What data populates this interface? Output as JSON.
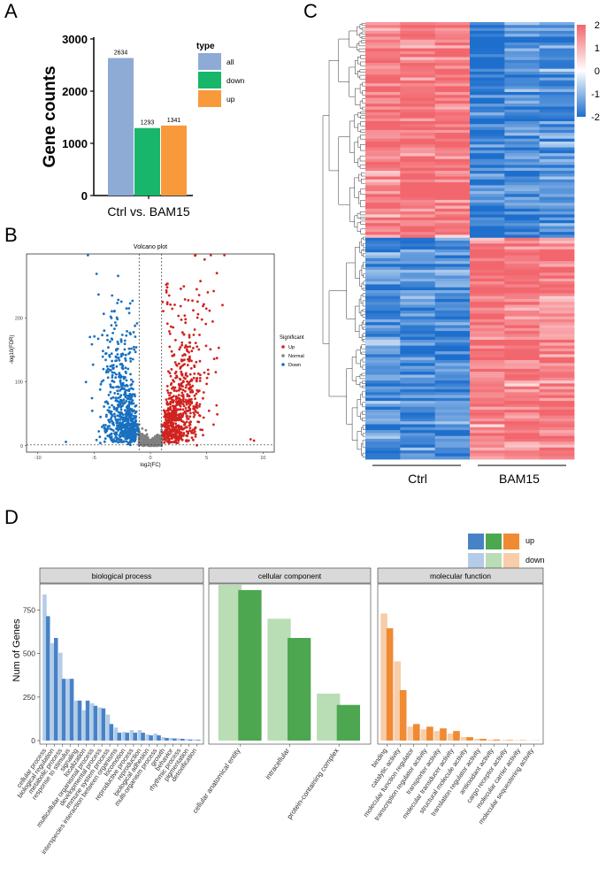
{
  "panels": {
    "a": "A",
    "b": "B",
    "c": "C",
    "d": "D"
  },
  "colors": {
    "all": "#8eabd6",
    "down_a": "#18b66b",
    "up_a": "#f89a3c",
    "volcano_up": "#d0231f",
    "volcano_down": "#1870bf",
    "volcano_normal": "#808080",
    "heat_high": "#f2666d",
    "heat_mid": "#ffffff",
    "heat_low": "#1e6fcd",
    "bp_up": "#4782c7",
    "bp_down": "#b3cce8",
    "cc_up": "#4da650",
    "cc_down": "#b9ddb5",
    "mf_up": "#f08a33",
    "mf_down": "#f8cda9"
  },
  "chart_data": [
    {
      "id": "A",
      "type": "bar",
      "ylabel": "Gene counts",
      "xlabel": "Ctrl vs. BAM15",
      "ylim": [
        0,
        3000
      ],
      "yticks": [
        "0",
        "1000",
        "2000",
        "3000"
      ],
      "categories": [
        "all",
        "down",
        "up"
      ],
      "values": [
        2634,
        1293,
        1341
      ],
      "value_labels": [
        "2634",
        "1293",
        "1341"
      ],
      "legend_title": "type",
      "legend": [
        "all",
        "down",
        "up"
      ]
    },
    {
      "id": "B",
      "type": "scatter",
      "title": "Volcano plot",
      "xlabel": "log2(FC)",
      "ylabel": "-log10(FDR)",
      "xlim": [
        -11,
        11
      ],
      "ylim": [
        -10,
        300
      ],
      "xticks": [
        "-10",
        "-5",
        "0",
        "5",
        "10"
      ],
      "yticks": [
        "0",
        "100",
        "200"
      ],
      "fc_threshold": [
        -1,
        1
      ],
      "fdr_threshold": 1.3,
      "legend_title": "Significant",
      "legend": [
        "Up",
        "Normal",
        "Down"
      ]
    },
    {
      "id": "C",
      "type": "heatmap",
      "columns": [
        "Ctrl",
        "Ctrl",
        "Ctrl",
        "BAM15",
        "BAM15",
        "BAM15"
      ],
      "group_labels": [
        "Ctrl",
        "BAM15"
      ],
      "row_groups": [
        {
          "name": "down_in_BAM15",
          "fraction": 0.49
        },
        {
          "name": "up_in_BAM15",
          "fraction": 0.51
        }
      ],
      "scale_ticks": [
        "2",
        "1",
        "0",
        "-1",
        "-2"
      ],
      "scale_range": [
        -2,
        2
      ]
    },
    {
      "id": "D",
      "type": "bar",
      "ylabel": "Num of Genes",
      "ylim": [
        0,
        900
      ],
      "yticks": [
        "0",
        "250",
        "500",
        "750"
      ],
      "legend": [
        "up",
        "down"
      ],
      "facets": [
        {
          "name": "biological process",
          "categories": [
            "cellular process",
            "biological regulation",
            "metabolic process",
            "response to stimulus",
            "signaling",
            "localization",
            "multicellular organismal process",
            "developmental process",
            "immune system process",
            "interspecies interaction between organisms",
            "locomotion",
            "reproductive process",
            "reproduction",
            "biological adhesion",
            "multi-organism process",
            "growth",
            "behavior",
            "rhythmic process",
            "pigmentation",
            "detoxification"
          ],
          "series": [
            {
              "name": "down",
              "values": [
                840,
                560,
                505,
                355,
                230,
                175,
                215,
                190,
                150,
                75,
                50,
                60,
                60,
                35,
                40,
                20,
                15,
                12,
                8,
                6
              ]
            },
            {
              "name": "up",
              "values": [
                715,
                590,
                355,
                355,
                230,
                230,
                200,
                185,
                95,
                45,
                45,
                45,
                45,
                30,
                30,
                15,
                12,
                10,
                6,
                4
              ]
            }
          ]
        },
        {
          "name": "cellular component",
          "categories": [
            "cellular anatomical entity",
            "intracellular",
            "protein-containing complex"
          ],
          "series": [
            {
              "name": "down",
              "values": [
                895,
                700,
                270
              ]
            },
            {
              "name": "up",
              "values": [
                865,
                590,
                205
              ]
            }
          ]
        },
        {
          "name": "molecular function",
          "categories": [
            "binding",
            "catalytic activity",
            "molecular function regulator",
            "transcription regulator activity",
            "transporter activity",
            "molecular transducer activity",
            "structural molecule activity",
            "translation regulator activity",
            "antioxidant activity",
            "cargo receptor activity",
            "molecular carrier activity",
            "molecular sequestering activity"
          ],
          "series": [
            {
              "name": "down",
              "values": [
                730,
                455,
                80,
                65,
                55,
                40,
                20,
                10,
                5,
                3,
                2,
                1
              ]
            },
            {
              "name": "up",
              "values": [
                645,
                290,
                95,
                80,
                70,
                55,
                20,
                10,
                6,
                3,
                2,
                1
              ]
            }
          ]
        }
      ]
    }
  ]
}
